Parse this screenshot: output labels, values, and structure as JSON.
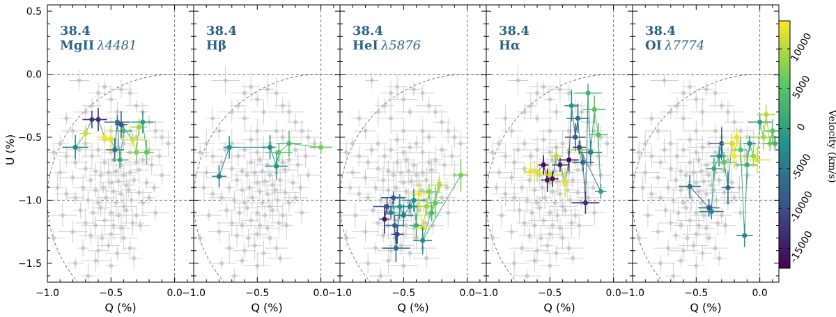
{
  "chart_data": {
    "type": "scatter",
    "title": "",
    "xlabel": "Q (%)",
    "ylabel": "U (%)",
    "xlim": [
      -1.0,
      0.15
    ],
    "ylim": [
      -1.65,
      0.55
    ],
    "x_tick_values": [
      -1.0,
      -0.5,
      0.0
    ],
    "x_tick_labels": [
      "−1.0",
      "−0.5",
      "0.0"
    ],
    "y_tick_values": [
      0.5,
      0.0,
      -0.5,
      -1.0,
      -1.5
    ],
    "y_tick_labels": [
      "0.5",
      "0.0",
      "−0.5",
      "−1.0",
      "−1.5"
    ],
    "reference_lines": {
      "q": 0.0,
      "u": 0.0,
      "circle_center": [
        0.0,
        -1.0
      ],
      "circle_radius": 1.0
    },
    "colorbar": {
      "label": "Velocity (km/s)",
      "range": [
        -17500,
        13500
      ],
      "tick_values": [
        10000,
        5000,
        0,
        -5000,
        -10000,
        -15000
      ],
      "tick_labels": [
        "10000",
        "5000",
        "0",
        "-5000",
        "-10000",
        "-15000"
      ],
      "colormap": [
        "#440154",
        "#3b528b",
        "#21918c",
        "#5ec962",
        "#fde725"
      ]
    },
    "background_points": [
      [
        -0.75,
        -0.05
      ],
      [
        -0.55,
        -0.1
      ],
      [
        -0.6,
        -0.15
      ],
      [
        -0.5,
        -0.2
      ],
      [
        -0.42,
        -0.12
      ],
      [
        -0.35,
        -0.15
      ],
      [
        -0.3,
        -0.25
      ],
      [
        -0.65,
        -0.25
      ],
      [
        -0.7,
        -0.3
      ],
      [
        -0.45,
        -0.3
      ],
      [
        -0.85,
        -0.35
      ],
      [
        -0.6,
        -0.35
      ],
      [
        -0.25,
        -0.3
      ],
      [
        -0.2,
        -0.38
      ],
      [
        -0.15,
        -0.45
      ],
      [
        -0.8,
        -0.45
      ],
      [
        -0.5,
        -0.45
      ],
      [
        -0.35,
        -0.45
      ],
      [
        -0.1,
        -0.5
      ],
      [
        -0.05,
        -0.55
      ],
      [
        -0.9,
        -0.55
      ],
      [
        -0.7,
        -0.55
      ],
      [
        -0.55,
        -0.52
      ],
      [
        -0.4,
        -0.55
      ],
      [
        -0.3,
        -0.5
      ],
      [
        -0.75,
        -0.6
      ],
      [
        -0.6,
        -0.6
      ],
      [
        -0.5,
        -0.62
      ],
      [
        -0.45,
        -0.58
      ],
      [
        -0.2,
        -0.6
      ],
      [
        -0.95,
        -0.62
      ],
      [
        -0.85,
        -0.65
      ],
      [
        -0.65,
        -0.65
      ],
      [
        -0.35,
        -0.62
      ],
      [
        -0.12,
        -0.65
      ],
      [
        -0.78,
        -0.7
      ],
      [
        -0.55,
        -0.7
      ],
      [
        -0.48,
        -0.68
      ],
      [
        -0.42,
        -0.72
      ],
      [
        -0.3,
        -0.7
      ],
      [
        -0.25,
        -0.68
      ],
      [
        -0.7,
        -0.75
      ],
      [
        -0.62,
        -0.77
      ],
      [
        -0.58,
        -0.8
      ],
      [
        -0.52,
        -0.78
      ],
      [
        -0.46,
        -0.77
      ],
      [
        -0.4,
        -0.8
      ],
      [
        -0.35,
        -0.78
      ],
      [
        -0.28,
        -0.76
      ],
      [
        -0.18,
        -0.72
      ],
      [
        -0.9,
        -0.78
      ],
      [
        -0.8,
        -0.82
      ],
      [
        -0.66,
        -0.84
      ],
      [
        -0.5,
        -0.86
      ],
      [
        -0.44,
        -0.85
      ],
      [
        -0.38,
        -0.88
      ],
      [
        -0.32,
        -0.84
      ],
      [
        -0.22,
        -0.86
      ],
      [
        -0.72,
        -0.9
      ],
      [
        -0.62,
        -0.92
      ],
      [
        -0.56,
        -0.9
      ],
      [
        -0.48,
        -0.93
      ],
      [
        -0.42,
        -0.95
      ],
      [
        -0.36,
        -0.92
      ],
      [
        -0.28,
        -0.94
      ],
      [
        -0.16,
        -0.9
      ],
      [
        -0.85,
        -0.95
      ],
      [
        -0.78,
        -0.98
      ],
      [
        -0.68,
        -1.0
      ],
      [
        -0.6,
        -1.02
      ],
      [
        -0.54,
        -0.98
      ],
      [
        -0.46,
        -1.02
      ],
      [
        -0.4,
        -1.05
      ],
      [
        -0.34,
        -1.0
      ],
      [
        -0.25,
        -1.02
      ],
      [
        -0.2,
        -0.98
      ],
      [
        -0.74,
        -1.08
      ],
      [
        -0.64,
        -1.1
      ],
      [
        -0.58,
        -1.06
      ],
      [
        -0.5,
        -1.1
      ],
      [
        -0.44,
        -1.12
      ],
      [
        -0.38,
        -1.08
      ],
      [
        -0.3,
        -1.12
      ],
      [
        -0.88,
        -1.12
      ],
      [
        -0.7,
        -1.18
      ],
      [
        -0.62,
        -1.2
      ],
      [
        -0.55,
        -1.16
      ],
      [
        -0.48,
        -1.2
      ],
      [
        -0.42,
        -1.22
      ],
      [
        -0.33,
        -1.18
      ],
      [
        -0.27,
        -1.2
      ],
      [
        -0.8,
        -1.25
      ],
      [
        -0.66,
        -1.28
      ],
      [
        -0.57,
        -1.3
      ],
      [
        -0.5,
        -1.27
      ],
      [
        -0.4,
        -1.3
      ],
      [
        -0.72,
        -1.38
      ],
      [
        -0.6,
        -1.4
      ],
      [
        -0.52,
        -1.36
      ],
      [
        -0.45,
        -1.42
      ],
      [
        -0.35,
        -1.38
      ],
      [
        -0.78,
        -1.5
      ],
      [
        -0.62,
        -1.48
      ],
      [
        -0.5,
        -1.52
      ],
      [
        -0.32,
        -1.46
      ],
      [
        -0.68,
        -1.6
      ],
      [
        -0.92,
        -0.9
      ],
      [
        -0.95,
        -1.3
      ],
      [
        -0.15,
        -1.1
      ],
      [
        -0.1,
        -0.8
      ]
    ],
    "panels": [
      {
        "epoch": "38.4",
        "line": "MgII",
        "wavelength": "λ4481",
        "series": [
          {
            "q": -0.78,
            "u": -0.58,
            "v": -3000
          },
          {
            "q": -0.7,
            "u": -0.47,
            "v": 11000
          },
          {
            "q": -0.65,
            "u": -0.36,
            "v": -11500
          },
          {
            "q": -0.6,
            "u": -0.36,
            "v": -13000
          },
          {
            "q": -0.55,
            "u": -0.5,
            "v": 13000
          },
          {
            "q": -0.5,
            "u": -0.52,
            "v": 12000
          },
          {
            "q": -0.47,
            "u": -0.6,
            "v": -6000
          },
          {
            "q": -0.45,
            "u": -0.38,
            "v": -6500
          },
          {
            "q": -0.43,
            "u": -0.68,
            "v": 1500
          },
          {
            "q": -0.4,
            "u": -0.45,
            "v": 4000
          },
          {
            "q": -0.42,
            "u": -0.4,
            "v": -9000
          },
          {
            "q": -0.33,
            "u": -0.52,
            "v": 11500
          },
          {
            "q": -0.3,
            "u": -0.62,
            "v": 7500
          },
          {
            "q": -0.28,
            "u": -0.42,
            "v": 9000
          },
          {
            "q": -0.25,
            "u": -0.38,
            "v": -500
          },
          {
            "q": -0.22,
            "u": -0.62,
            "v": 6000
          }
        ]
      },
      {
        "epoch": "38.4",
        "line": "Hβ",
        "wavelength": "",
        "series": [
          {
            "q": -0.8,
            "u": -0.81,
            "v": -4500
          },
          {
            "q": -0.72,
            "u": -0.58,
            "v": -2000
          },
          {
            "q": -0.4,
            "u": -0.58,
            "v": -3000
          },
          {
            "q": -0.35,
            "u": -0.73,
            "v": -1500
          },
          {
            "q": -0.33,
            "u": -0.62,
            "v": 5000
          },
          {
            "q": -0.25,
            "u": -0.55,
            "v": 3500
          },
          {
            "q": 0.0,
            "u": -0.58,
            "v": 6500
          }
        ]
      },
      {
        "epoch": "38.4",
        "line": "HeI",
        "wavelength": "λ5876",
        "series": [
          {
            "q": -0.65,
            "u": -1.15,
            "v": -14500
          },
          {
            "q": -0.63,
            "u": -1.05,
            "v": -9500
          },
          {
            "q": -0.6,
            "u": -1.1,
            "v": -4000
          },
          {
            "q": -0.58,
            "u": -0.98,
            "v": -9000
          },
          {
            "q": -0.57,
            "u": -1.2,
            "v": -7500
          },
          {
            "q": -0.56,
            "u": -1.38,
            "v": -6500
          },
          {
            "q": -0.55,
            "u": -1.27,
            "v": -11000
          },
          {
            "q": -0.53,
            "u": -1.05,
            "v": -1000
          },
          {
            "q": -0.5,
            "u": -1.12,
            "v": -5000
          },
          {
            "q": -0.45,
            "u": -1.05,
            "v": -3000
          },
          {
            "q": -0.42,
            "u": -1.0,
            "v": -2000
          },
          {
            "q": -0.4,
            "u": -1.2,
            "v": 1500
          },
          {
            "q": -0.38,
            "u": -0.95,
            "v": 13000
          },
          {
            "q": -0.35,
            "u": -1.22,
            "v": 12500
          },
          {
            "q": -0.32,
            "u": -1.05,
            "v": 9000
          },
          {
            "q": -0.3,
            "u": -0.93,
            "v": 8000
          },
          {
            "q": -0.28,
            "u": -1.1,
            "v": 3500
          },
          {
            "q": -0.25,
            "u": -1.02,
            "v": 6000
          },
          {
            "q": -0.22,
            "u": -0.88,
            "v": 10000
          },
          {
            "q": -0.35,
            "u": -1.32,
            "v": -2500
          },
          {
            "q": -0.05,
            "u": -0.8,
            "v": 7000
          }
        ]
      },
      {
        "epoch": "38.4",
        "line": "Hα",
        "wavelength": "",
        "series": [
          {
            "q": -0.65,
            "u": -0.77,
            "v": 13000
          },
          {
            "q": -0.6,
            "u": -0.78,
            "v": 12000
          },
          {
            "q": -0.55,
            "u": -0.72,
            "v": -17000
          },
          {
            "q": -0.52,
            "u": -0.84,
            "v": -15000
          },
          {
            "q": -0.5,
            "u": -0.8,
            "v": 11500
          },
          {
            "q": -0.48,
            "u": -0.83,
            "v": -16000
          },
          {
            "q": -0.45,
            "u": -0.65,
            "v": 10000
          },
          {
            "q": -0.42,
            "u": -0.72,
            "v": -13500
          },
          {
            "q": -0.38,
            "u": -0.86,
            "v": 12500
          },
          {
            "q": -0.35,
            "u": -0.68,
            "v": -16500
          },
          {
            "q": -0.33,
            "u": -0.25,
            "v": -1500
          },
          {
            "q": -0.3,
            "u": -0.5,
            "v": -9000
          },
          {
            "q": -0.28,
            "u": -0.35,
            "v": -6000
          },
          {
            "q": -0.26,
            "u": -0.6,
            "v": 8000
          },
          {
            "q": -0.24,
            "u": -0.7,
            "v": -7000
          },
          {
            "q": -0.22,
            "u": -1.02,
            "v": -13000
          },
          {
            "q": -0.2,
            "u": -0.15,
            "v": 2500
          },
          {
            "q": -0.18,
            "u": -0.62,
            "v": -4500
          },
          {
            "q": -0.15,
            "u": -0.28,
            "v": 5000
          },
          {
            "q": -0.12,
            "u": -0.48,
            "v": 4500
          },
          {
            "q": -0.1,
            "u": -0.93,
            "v": -500
          },
          {
            "q": -0.27,
            "u": -0.58,
            "v": -10500
          }
        ]
      },
      {
        "epoch": "38.4",
        "line": "OI",
        "wavelength": "λ7774",
        "series": [
          {
            "q": -0.55,
            "u": -0.89,
            "v": -6000
          },
          {
            "q": -0.4,
            "u": -1.06,
            "v": -9500
          },
          {
            "q": -0.38,
            "u": -1.09,
            "v": -3000
          },
          {
            "q": -0.36,
            "u": -0.75,
            "v": 1000
          },
          {
            "q": -0.32,
            "u": -0.65,
            "v": -2000
          },
          {
            "q": -0.3,
            "u": -0.55,
            "v": -8000
          },
          {
            "q": -0.28,
            "u": -0.7,
            "v": 6000
          },
          {
            "q": -0.25,
            "u": -0.9,
            "v": -7000
          },
          {
            "q": -0.22,
            "u": -0.55,
            "v": 11500
          },
          {
            "q": -0.2,
            "u": -0.65,
            "v": 13000
          },
          {
            "q": -0.18,
            "u": -0.5,
            "v": 12500
          },
          {
            "q": -0.15,
            "u": -0.6,
            "v": 5000
          },
          {
            "q": -0.12,
            "u": -1.28,
            "v": -2500
          },
          {
            "q": -0.1,
            "u": -0.72,
            "v": 2000
          },
          {
            "q": -0.08,
            "u": -0.55,
            "v": -1500
          },
          {
            "q": -0.05,
            "u": -0.65,
            "v": 8500
          },
          {
            "q": -0.02,
            "u": -0.68,
            "v": 12000
          },
          {
            "q": 0.0,
            "u": -0.38,
            "v": 0
          },
          {
            "q": 0.03,
            "u": -0.5,
            "v": 9000
          },
          {
            "q": 0.05,
            "u": -0.32,
            "v": 10000
          },
          {
            "q": 0.08,
            "u": -0.55,
            "v": 7500
          },
          {
            "q": 0.1,
            "u": -0.45,
            "v": 5000
          },
          {
            "q": 0.12,
            "u": -0.55,
            "v": 3000
          }
        ]
      }
    ]
  }
}
